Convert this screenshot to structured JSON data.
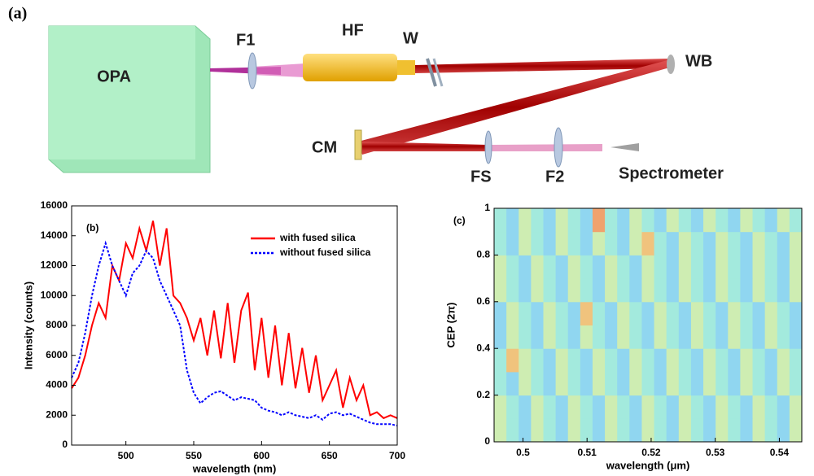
{
  "panel_a": {
    "label": "(a)",
    "opa": "OPA",
    "f1": "F1",
    "hf": "HF",
    "w": "W",
    "wb": "WB",
    "cm": "CM",
    "fs": "FS",
    "f2": "F2",
    "spectrometer": "Spectrometer"
  },
  "chart_data": [
    {
      "type": "line",
      "panel_label": "(b)",
      "x_label": "wavelength (nm)",
      "y_label": "Intensity (counts)",
      "x": [
        460,
        465,
        470,
        475,
        480,
        485,
        490,
        495,
        500,
        505,
        510,
        515,
        520,
        525,
        530,
        535,
        540,
        545,
        550,
        555,
        560,
        565,
        570,
        575,
        580,
        585,
        590,
        595,
        600,
        605,
        610,
        615,
        620,
        625,
        630,
        635,
        640,
        645,
        650,
        655,
        660,
        665,
        670,
        675,
        680,
        685,
        690,
        695,
        700
      ],
      "series": [
        {
          "name": "with fused silica",
          "color": "#ff0000",
          "dash": false,
          "values": [
            3800,
            4500,
            6000,
            8000,
            9500,
            8500,
            12000,
            11000,
            13500,
            12500,
            14500,
            13000,
            15000,
            12000,
            14500,
            10000,
            9500,
            8500,
            7000,
            8500,
            6000,
            9000,
            5800,
            9500,
            5500,
            9000,
            10200,
            5000,
            8500,
            4500,
            8000,
            4000,
            7500,
            3800,
            6500,
            3500,
            6000,
            3000,
            4000,
            5000,
            2500,
            4500,
            3000,
            4000,
            2000,
            2200,
            1800,
            2000,
            1800
          ]
        },
        {
          "name": "without fused silica",
          "color": "#0000ff",
          "dash": true,
          "values": [
            4500,
            5500,
            7500,
            10000,
            12000,
            13500,
            12000,
            11000,
            10000,
            11500,
            12000,
            13000,
            12500,
            11000,
            10000,
            9000,
            8000,
            5000,
            3500,
            2800,
            3200,
            3500,
            3600,
            3300,
            3000,
            3200,
            3100,
            3000,
            2500,
            2300,
            2200,
            2000,
            2200,
            2000,
            1900,
            1800,
            2000,
            1700,
            2100,
            2200,
            2000,
            2100,
            1900,
            1700,
            1500,
            1400,
            1400,
            1400,
            1300
          ]
        }
      ],
      "xlim": [
        460,
        700
      ],
      "xticks": [
        500,
        550,
        600,
        650,
        700
      ],
      "ylim": [
        0,
        16000
      ],
      "yticks": [
        0,
        2000,
        4000,
        6000,
        8000,
        10000,
        12000,
        14000,
        16000
      ],
      "legend": "upper right"
    },
    {
      "type": "heatmap",
      "panel_label": "(c)",
      "x_label": "wavelength (μm)",
      "y_label": "CEP (2π)",
      "xlim": [
        0.4955,
        0.5435
      ],
      "xticks": [
        0.5,
        0.51,
        0.52,
        0.53,
        0.54
      ],
      "ylim": [
        0,
        1
      ],
      "yticks": [
        0,
        0.2,
        0.4,
        0.6,
        0.8,
        1
      ],
      "colormap": [
        "#8f9ff0",
        "#90e8f0",
        "#f0f090",
        "#f08060"
      ],
      "z": [
        [
          0.55,
          0.4,
          0.25,
          0.55,
          0.4,
          0.25,
          0.55,
          0.4,
          0.25,
          0.55,
          0.4,
          0.25,
          0.55,
          0.4,
          0.25,
          0.55,
          0.4,
          0.25,
          0.55,
          0.4,
          0.25,
          0.55,
          0.4,
          0.25,
          0.55
        ],
        [
          0.55,
          0.4,
          0.25,
          0.55,
          0.4,
          0.25,
          0.55,
          0.4,
          0.25,
          0.55,
          0.4,
          0.25,
          0.55,
          0.4,
          0.25,
          0.55,
          0.4,
          0.25,
          0.55,
          0.4,
          0.25,
          0.55,
          0.4,
          0.25,
          0.55
        ],
        [
          0.4,
          0.25,
          0.55,
          0.4,
          0.25,
          0.55,
          0.4,
          0.25,
          0.55,
          0.4,
          0.25,
          0.55,
          0.4,
          0.25,
          0.55,
          0.4,
          0.25,
          0.55,
          0.4,
          0.25,
          0.55,
          0.4,
          0.25,
          0.55,
          0.4
        ],
        [
          0.4,
          0.8,
          0.55,
          0.4,
          0.25,
          0.55,
          0.4,
          0.25,
          0.55,
          0.4,
          0.25,
          0.55,
          0.4,
          0.25,
          0.55,
          0.4,
          0.25,
          0.55,
          0.4,
          0.25,
          0.55,
          0.4,
          0.25,
          0.55,
          0.4
        ],
        [
          0.25,
          0.55,
          0.4,
          0.25,
          0.55,
          0.4,
          0.25,
          0.55,
          0.4,
          0.25,
          0.55,
          0.4,
          0.25,
          0.55,
          0.4,
          0.25,
          0.55,
          0.4,
          0.25,
          0.55,
          0.4,
          0.25,
          0.55,
          0.4,
          0.25
        ],
        [
          0.25,
          0.55,
          0.4,
          0.25,
          0.55,
          0.4,
          0.25,
          0.8,
          0.4,
          0.25,
          0.55,
          0.4,
          0.25,
          0.55,
          0.4,
          0.25,
          0.55,
          0.4,
          0.25,
          0.55,
          0.4,
          0.25,
          0.55,
          0.4,
          0.25
        ],
        [
          0.55,
          0.4,
          0.25,
          0.55,
          0.4,
          0.25,
          0.55,
          0.4,
          0.25,
          0.55,
          0.4,
          0.25,
          0.55,
          0.4,
          0.25,
          0.55,
          0.4,
          0.25,
          0.55,
          0.4,
          0.25,
          0.55,
          0.4,
          0.25,
          0.55
        ],
        [
          0.55,
          0.4,
          0.25,
          0.55,
          0.4,
          0.25,
          0.55,
          0.4,
          0.25,
          0.55,
          0.4,
          0.25,
          0.55,
          0.4,
          0.25,
          0.55,
          0.4,
          0.25,
          0.55,
          0.4,
          0.25,
          0.55,
          0.4,
          0.25,
          0.55
        ],
        [
          0.4,
          0.25,
          0.55,
          0.4,
          0.25,
          0.55,
          0.4,
          0.25,
          0.55,
          0.4,
          0.25,
          0.55,
          0.8,
          0.4,
          0.25,
          0.55,
          0.4,
          0.25,
          0.55,
          0.4,
          0.25,
          0.55,
          0.4,
          0.25,
          0.55
        ],
        [
          0.4,
          0.25,
          0.55,
          0.4,
          0.25,
          0.55,
          0.4,
          0.25,
          0.9,
          0.4,
          0.25,
          0.55,
          0.4,
          0.25,
          0.55,
          0.4,
          0.25,
          0.55,
          0.4,
          0.25,
          0.55,
          0.4,
          0.25,
          0.55,
          0.4
        ]
      ]
    }
  ]
}
